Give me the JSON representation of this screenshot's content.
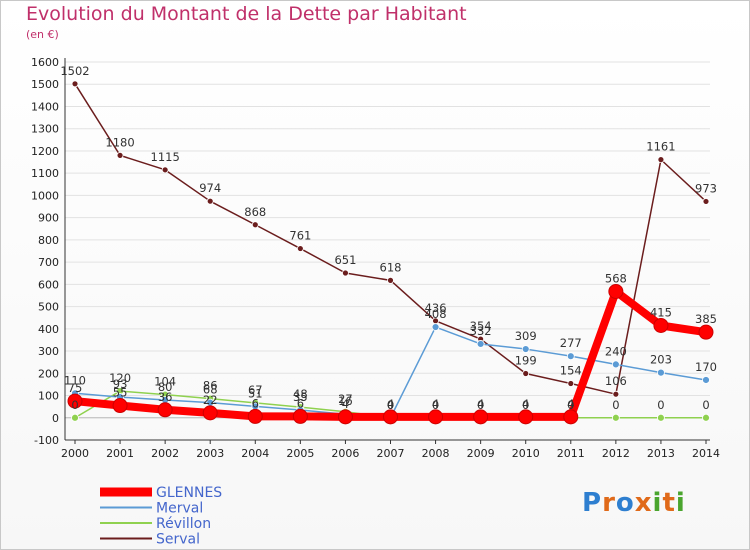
{
  "header": {
    "title": "Evolution du Montant de la Dette par Habitant",
    "subtitle": "(en €)"
  },
  "logo": {
    "text": "Proxiti",
    "colors": [
      "#2e7fd0",
      "#e06a1a",
      "#2e7fd0",
      "#e06a1a",
      "#4aa52e",
      "#e06a1a",
      "#4aa52e"
    ]
  },
  "chart_data": {
    "type": "line",
    "title": "Evolution du Montant de la Dette par Habitant",
    "ylabel": "(en €)",
    "xlabel": "",
    "x": [
      "2000",
      "2001",
      "2002",
      "2003",
      "2004",
      "2005",
      "2006",
      "2007",
      "2008",
      "2009",
      "2010",
      "2011",
      "2012",
      "2013",
      "2014"
    ],
    "ylim": [
      -100,
      1600
    ],
    "yticks": [
      -100,
      0,
      100,
      200,
      300,
      400,
      500,
      600,
      700,
      800,
      900,
      1000,
      1100,
      1200,
      1300,
      1400,
      1500,
      1600
    ],
    "grid": true,
    "legend_position": "bottom-left",
    "series": [
      {
        "name": "GLENNES",
        "color": "#ff0000",
        "width": 8,
        "marker": 7,
        "values": [
          75,
          55,
          36,
          22,
          6,
          6,
          4,
          4,
          4,
          4,
          4,
          4,
          568,
          415,
          385
        ],
        "labels": [
          "75",
          "55",
          "36",
          "22",
          "6",
          "6",
          "4",
          "4",
          "4",
          "4",
          "4",
          "4",
          "568",
          "415",
          "385"
        ]
      },
      {
        "name": "Merval",
        "color": "#5b9bd5",
        "width": 1.5,
        "marker": 3.5,
        "values": [
          110,
          93,
          80,
          68,
          51,
          35,
          16,
          0,
          408,
          332,
          309,
          277,
          240,
          203,
          170
        ],
        "labels": [
          "110",
          "93",
          "80",
          "68",
          "51",
          "35",
          "16",
          "0",
          "408",
          "332",
          "309",
          "277",
          "240",
          "203",
          "170"
        ]
      },
      {
        "name": "Révillon",
        "color": "#8fd14f",
        "width": 1.5,
        "marker": 3.5,
        "values": [
          0,
          120,
          104,
          86,
          67,
          48,
          27,
          0,
          0,
          0,
          0,
          0,
          0,
          0,
          0
        ],
        "labels": [
          "0",
          "120",
          "104",
          "86",
          "67",
          "48",
          "27",
          "0",
          "0",
          "0",
          "0",
          "0",
          "0",
          "0",
          "0"
        ]
      },
      {
        "name": "Serval",
        "color": "#6b1d1d",
        "width": 1.5,
        "marker": 3,
        "values": [
          1502,
          1180,
          1115,
          974,
          868,
          761,
          651,
          618,
          436,
          354,
          199,
          154,
          106,
          1161,
          973
        ],
        "labels": [
          "1502",
          "1180",
          "1115",
          "974",
          "868",
          "761",
          "651",
          "618",
          "436",
          "354",
          "199",
          "154",
          "106",
          "1161",
          "973"
        ]
      }
    ]
  }
}
